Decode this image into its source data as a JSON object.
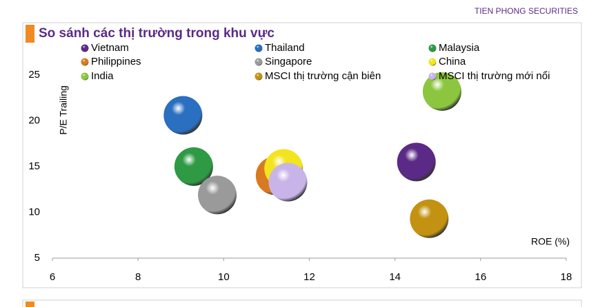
{
  "header": {
    "brand": "TIEN PHONG SECURITIES"
  },
  "chart_data": {
    "type": "bubble",
    "title": "So sánh các thị trường trong khu vực",
    "x_label": "ROE (%)",
    "y_label": "P/E Trailing",
    "xlim": [
      6,
      18
    ],
    "xticks": [
      6,
      8,
      10,
      12,
      14,
      16,
      18
    ],
    "ylim": [
      5,
      25
    ],
    "yticks": [
      5,
      10,
      15,
      20,
      25
    ],
    "series": [
      {
        "name": "Vietnam",
        "color": "#5b2a86",
        "x": 14.5,
        "y": 15.5
      },
      {
        "name": "Thailand",
        "color": "#2a6fc0",
        "x": 9.05,
        "y": 20.6
      },
      {
        "name": "Malaysia",
        "color": "#2e9a44",
        "x": 9.3,
        "y": 15.0
      },
      {
        "name": "Philippines",
        "color": "#d97a20",
        "x": 11.2,
        "y": 14.0
      },
      {
        "name": "Singapore",
        "color": "#9a9a9a",
        "x": 9.85,
        "y": 11.9
      },
      {
        "name": "China",
        "color": "#f2e41e",
        "x": 11.4,
        "y": 14.8
      },
      {
        "name": "India",
        "color": "#8cc63f",
        "x": 15.1,
        "y": 23.2
      },
      {
        "name": "MSCI thị trường cận biên",
        "color": "#c39212",
        "x": 14.8,
        "y": 9.3
      },
      {
        "name": "MSCI thị trường mới nổi",
        "color": "#c8b4e8",
        "x": 11.5,
        "y": 13.3
      }
    ]
  }
}
